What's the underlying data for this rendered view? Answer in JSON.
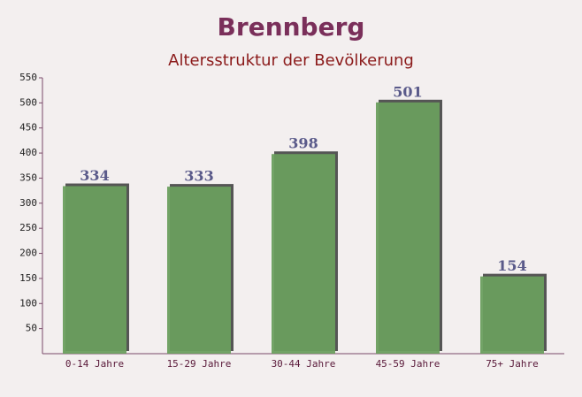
{
  "chart_data": {
    "type": "bar",
    "title": "Brennberg",
    "subtitle": "Altersstruktur der Bevölkerung",
    "categories": [
      "0-14 Jahre",
      "15-29 Jahre",
      "30-44 Jahre",
      "45-59 Jahre",
      "75+ Jahre"
    ],
    "values": [
      334,
      333,
      398,
      501,
      154
    ],
    "color": "#6a9e5e",
    "ylim": [
      0,
      550
    ],
    "yticks": [
      50,
      100,
      150,
      200,
      250,
      300,
      350,
      400,
      450,
      500,
      550
    ],
    "grid": false
  }
}
